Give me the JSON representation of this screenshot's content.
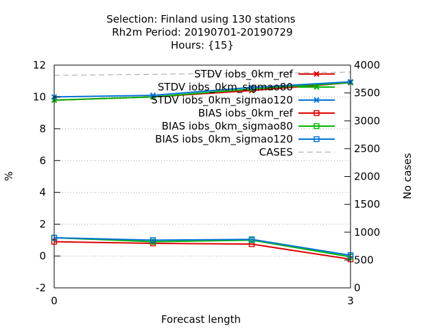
{
  "chart_data": {
    "type": "line",
    "title_lines": [
      "Selection: Finland using   130 stations",
      "Rh2m   Period: 20190701-20190729",
      "Hours: {15}"
    ],
    "xlabel": "Forecast length",
    "ylabel": "%",
    "y2label": "No cases",
    "xlim": [
      0,
      3
    ],
    "ylim": [
      -2,
      12
    ],
    "y2lim": [
      0,
      4000
    ],
    "x_ticks": [
      0,
      3
    ],
    "y_ticks": [
      -2,
      0,
      2,
      4,
      6,
      8,
      10,
      12
    ],
    "y2_ticks": [
      0,
      500,
      1000,
      1500,
      2000,
      2500,
      3000,
      3500,
      4000
    ],
    "grid": true,
    "legend_position": "top-right",
    "series": [
      {
        "name": "STDV iobs_0km_ref",
        "axis": "y",
        "color": "#e00000",
        "marker": "x",
        "dashed": false,
        "x": [
          0,
          1,
          2,
          3
        ],
        "y": [
          9.8,
          10.0,
          10.4,
          10.9
        ]
      },
      {
        "name": "STDV iobs_0km_sigmao80",
        "axis": "y",
        "color": "#00b400",
        "marker": "x",
        "dashed": false,
        "x": [
          0,
          1,
          2,
          3
        ],
        "y": [
          9.8,
          10.0,
          10.5,
          10.9
        ]
      },
      {
        "name": "STDV iobs_0km_sigmao120",
        "axis": "y",
        "color": "#0072d8",
        "marker": "x",
        "dashed": false,
        "x": [
          0,
          1,
          2,
          3
        ],
        "y": [
          10.0,
          10.1,
          10.6,
          10.95
        ]
      },
      {
        "name": "BIAS iobs_0km_ref",
        "axis": "y",
        "color": "#e00000",
        "marker": "square",
        "dashed": false,
        "x": [
          0,
          1,
          2,
          3
        ],
        "y": [
          0.9,
          0.8,
          0.75,
          -0.2
        ]
      },
      {
        "name": "BIAS iobs_0km_sigmao80",
        "axis": "y",
        "color": "#00b400",
        "marker": "square",
        "dashed": false,
        "x": [
          0,
          1,
          2,
          3
        ],
        "y": [
          1.15,
          0.9,
          1.0,
          -0.05
        ]
      },
      {
        "name": "BIAS iobs_0km_sigmao120",
        "axis": "y",
        "color": "#0072d8",
        "marker": "square",
        "dashed": false,
        "x": [
          0,
          1,
          2,
          3
        ],
        "y": [
          1.15,
          1.0,
          1.05,
          0.05
        ]
      },
      {
        "name": "CASES",
        "axis": "y2",
        "color": "#a0a0a0",
        "marker": "none",
        "dashed": true,
        "x": [
          0,
          1,
          2,
          3
        ],
        "y": [
          3815,
          3835,
          3855,
          3875
        ]
      }
    ]
  }
}
